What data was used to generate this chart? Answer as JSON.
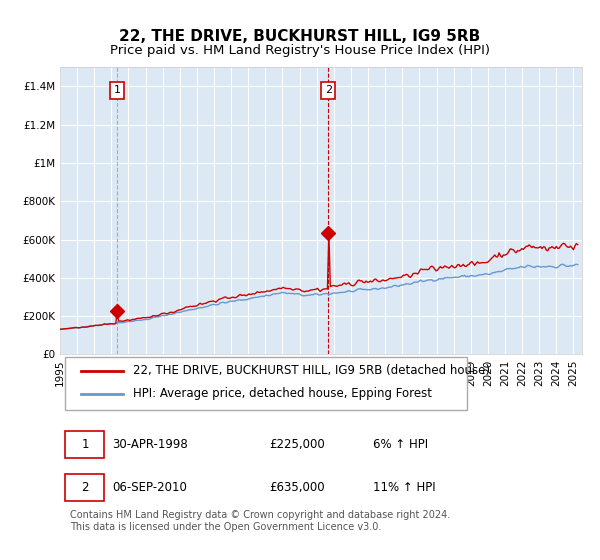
{
  "title": "22, THE DRIVE, BUCKHURST HILL, IG9 5RB",
  "subtitle": "Price paid vs. HM Land Registry's House Price Index (HPI)",
  "xlabel": "",
  "ylabel": "",
  "ylim": [
    0,
    1500000
  ],
  "xlim_start": 1995.0,
  "xlim_end": 2025.5,
  "background_color": "#ffffff",
  "plot_bg_color": "#dce9f5",
  "grid_color": "#ffffff",
  "red_line_color": "#cc0000",
  "blue_line_color": "#6699cc",
  "dashed_line_color": "#cc0000",
  "sale1_date": 1998.33,
  "sale1_price": 225000,
  "sale1_label": "1",
  "sale2_date": 2010.68,
  "sale2_price": 635000,
  "sale2_label": "2",
  "legend_line1": "22, THE DRIVE, BUCKHURST HILL, IG9 5RB (detached house)",
  "legend_line2": "HPI: Average price, detached house, Epping Forest",
  "table_row1": [
    "1",
    "30-APR-1998",
    "£225,000",
    "6% ↑ HPI"
  ],
  "table_row2": [
    "2",
    "06-SEP-2010",
    "£635,000",
    "11% ↑ HPI"
  ],
  "footnote": "Contains HM Land Registry data © Crown copyright and database right 2024.\nThis data is licensed under the Open Government Licence v3.0.",
  "title_fontsize": 11,
  "subtitle_fontsize": 9.5,
  "tick_fontsize": 7.5,
  "legend_fontsize": 8.5,
  "table_fontsize": 8.5,
  "footnote_fontsize": 7
}
